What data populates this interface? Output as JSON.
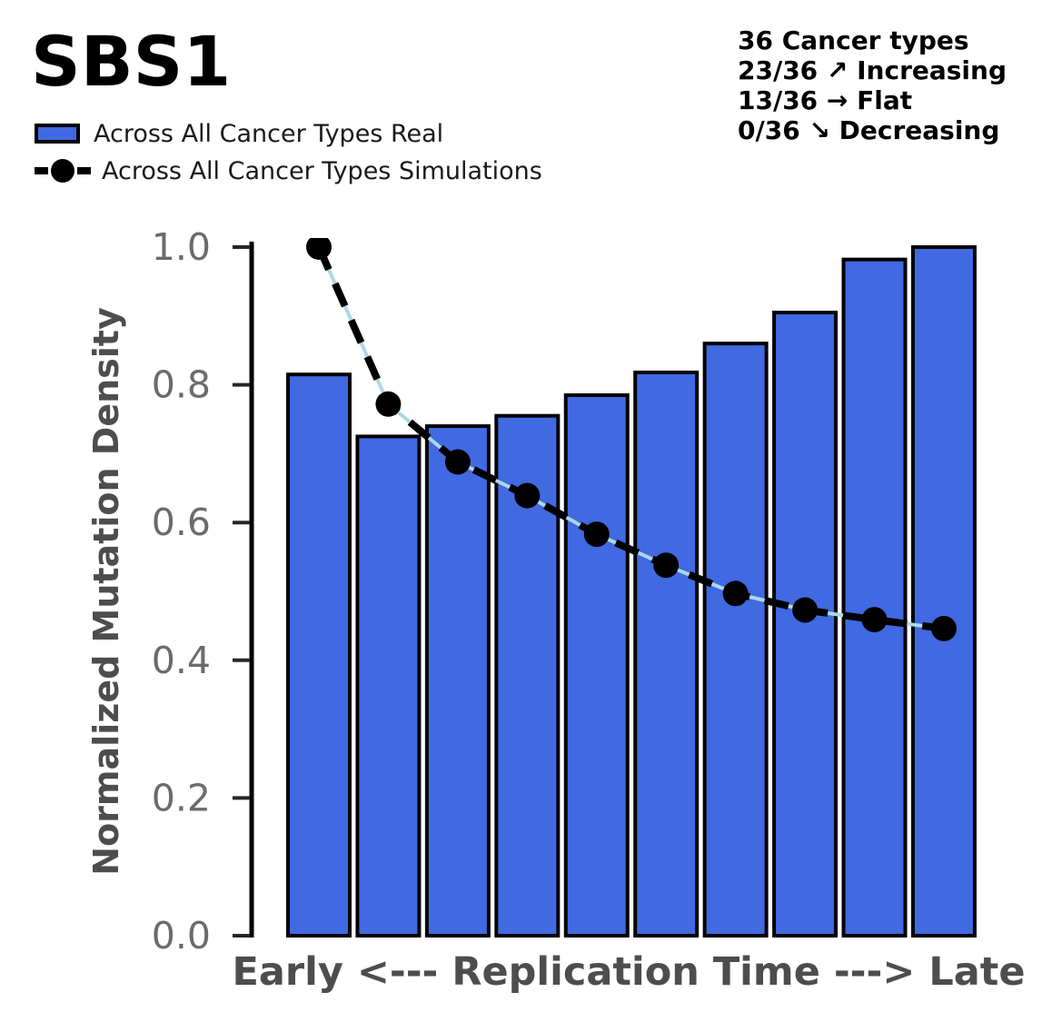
{
  "title": "SBS1",
  "legend": {
    "items": [
      {
        "label": "Across All Cancer Types Real",
        "marker": "blue-bar-swatch"
      },
      {
        "label": "Across All Cancer Types Simulations",
        "marker": "black-dashed-line-with-dot"
      }
    ]
  },
  "annotation": {
    "lines": [
      "36 Cancer types",
      "23/36 ↗ Increasing",
      "13/36 → Flat",
      "0/36 ↘ Decreasing"
    ]
  },
  "colors": {
    "bar_fill": "#4169E1",
    "bar_edge": "#000000",
    "sim_line": "#000000",
    "sim_underlay": "#ADD8E6",
    "axis_label": "#4d4d4d",
    "tick_label": "#6b6b6b",
    "spine": "#000000"
  },
  "chart_data": {
    "type": "bar",
    "x": [
      1,
      2,
      3,
      4,
      5,
      6,
      7,
      8,
      9,
      10
    ],
    "series": [
      {
        "name": "Across All Cancer Types Real",
        "type": "bar",
        "values": [
          0.815,
          0.725,
          0.74,
          0.755,
          0.785,
          0.818,
          0.86,
          0.905,
          0.982,
          1.0
        ]
      },
      {
        "name": "Across All Cancer Types Simulations",
        "type": "line-dashed-dot",
        "values": [
          1.0,
          0.772,
          0.688,
          0.639,
          0.583,
          0.538,
          0.497,
          0.473,
          0.459,
          0.446
        ]
      }
    ],
    "title": "SBS1",
    "xlabel": "Early <--- Replication Time ---> Late",
    "ylabel": "Normalized Mutation Density",
    "ylim": [
      0.0,
      1.0
    ],
    "yticks": [
      "0.0",
      "0.2",
      "0.4",
      "0.6",
      "0.8",
      "1.0"
    ],
    "xticks": [],
    "grid": false,
    "legend_position": "upper-left-outside"
  }
}
